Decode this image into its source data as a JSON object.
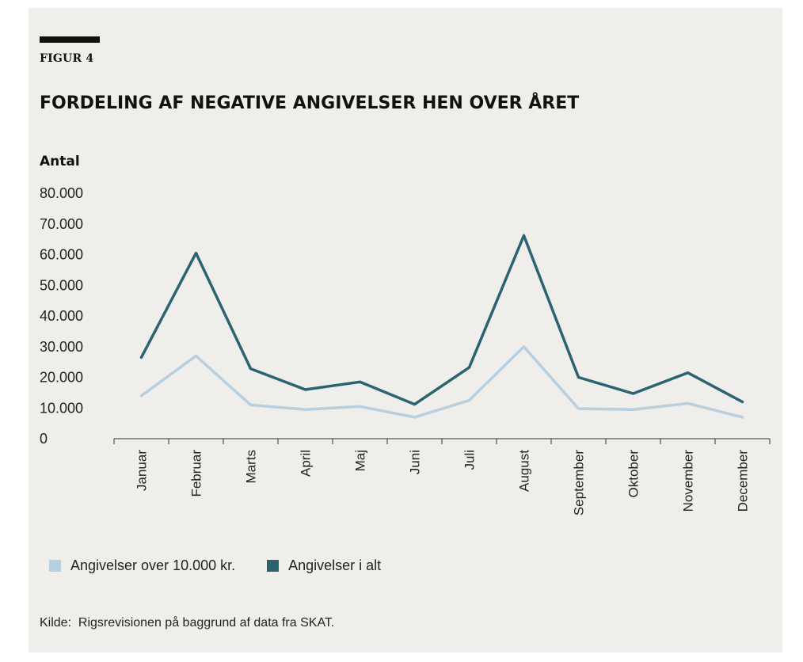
{
  "figure": {
    "label": "FIGUR 4",
    "title": "FORDELING AF NEGATIVE ANGIVELSER HEN OVER ÅRET",
    "source": "Kilde:  Rigsrevisionen på baggrund af data fra SKAT."
  },
  "colors": {
    "background": "#efeeea",
    "series_light": "#b8cfdf",
    "series_dark": "#2b6470",
    "text": "#111111"
  },
  "chart_data": {
    "type": "line",
    "ylabel": "Antal",
    "xlabel": "",
    "ylim": [
      0,
      80000
    ],
    "yticks": [
      "0",
      "10.000",
      "20.000",
      "30.000",
      "40.000",
      "50.000",
      "60.000",
      "70.000",
      "80.000"
    ],
    "categories": [
      "Januar",
      "Februar",
      "Marts",
      "April",
      "Maj",
      "Juni",
      "Juli",
      "August",
      "September",
      "Oktober",
      "November",
      "December"
    ],
    "series": [
      {
        "name": "Angivelser over 10.000 kr.",
        "values": [
          14000,
          27000,
          11000,
          9500,
          10500,
          7000,
          12500,
          30000,
          9800,
          9500,
          11500,
          7000
        ]
      },
      {
        "name": "Angivelser i alt",
        "values": [
          26500,
          60500,
          22800,
          16000,
          18500,
          11200,
          23200,
          66200,
          20000,
          14700,
          21500,
          12000
        ]
      }
    ],
    "grid": false,
    "legend": "bottom-left"
  }
}
